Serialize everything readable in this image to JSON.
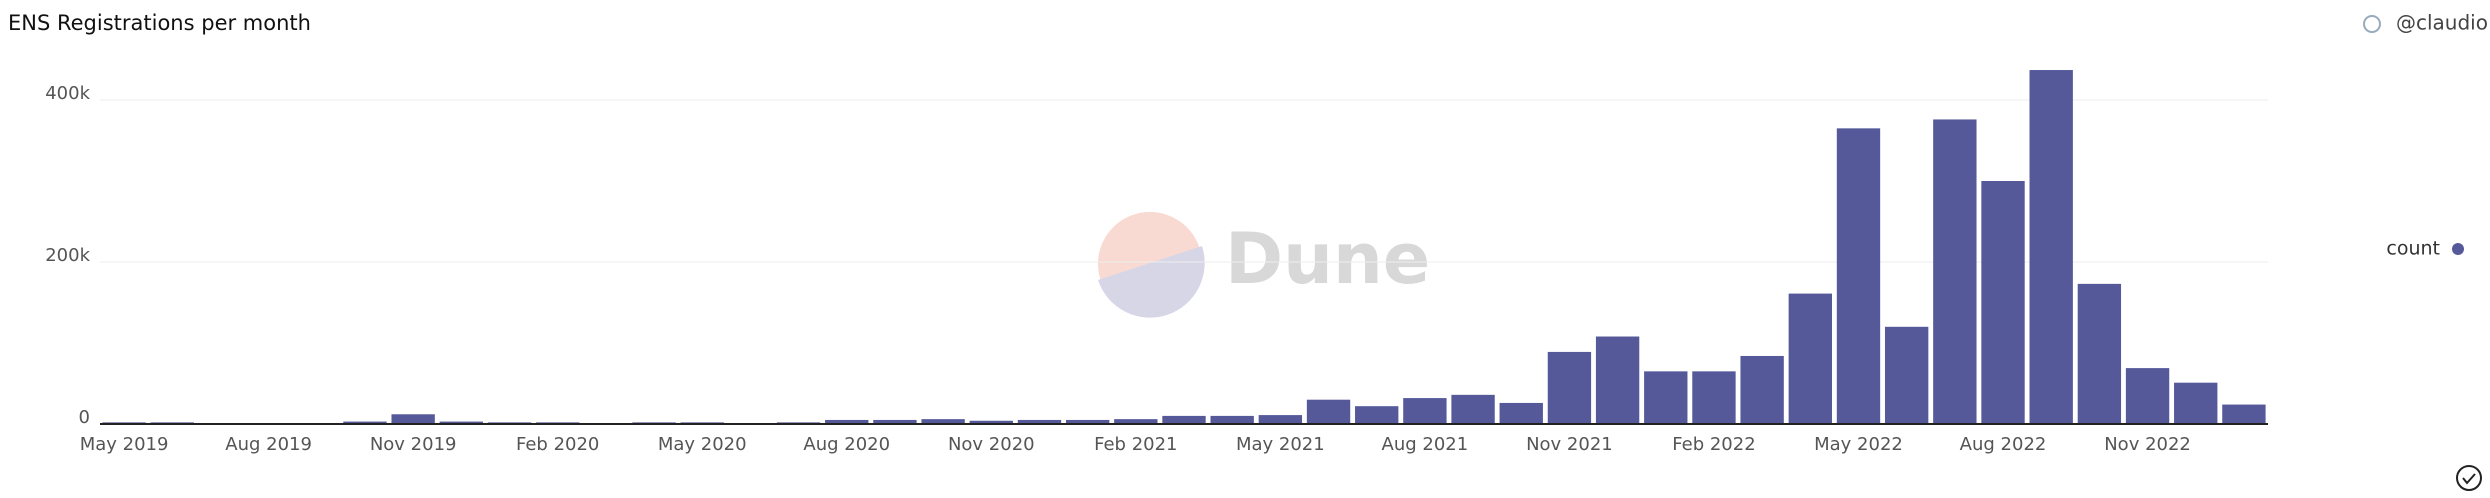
{
  "chart_data": {
    "type": "bar",
    "title": "ENS Registrations per month",
    "author": "@claudio",
    "watermark": "Dune",
    "categories": [
      "May 2019",
      null,
      null,
      "Aug 2019",
      null,
      null,
      "Nov 2019",
      null,
      null,
      "Feb 2020",
      null,
      null,
      "May 2020",
      null,
      null,
      "Aug 2020",
      null,
      null,
      "Nov 2020",
      null,
      null,
      "Feb 2021",
      null,
      null,
      "May 2021",
      null,
      null,
      "Aug 2021",
      null,
      null,
      "Nov 2021",
      null,
      null,
      "Feb 2022",
      null,
      null,
      "May 2022",
      null,
      null,
      "Aug 2022",
      null,
      null,
      "Nov 2022",
      null,
      null
    ],
    "series": [
      {
        "name": "count",
        "color": "#55599a",
        "values": [
          2000,
          2000,
          1000,
          1000,
          1000,
          3000,
          12000,
          3000,
          2000,
          2000,
          1000,
          2000,
          2000,
          1000,
          2000,
          5000,
          5000,
          6000,
          4000,
          5000,
          5000,
          6000,
          10000,
          10000,
          11000,
          30000,
          22000,
          32000,
          36000,
          26000,
          89000,
          108000,
          65000,
          65000,
          84000,
          161000,
          365000,
          120000,
          376000,
          300000,
          437000,
          173000,
          69000,
          51000,
          24000
        ]
      }
    ],
    "ylim": [
      0,
      450000
    ],
    "yticks": [
      {
        "value": 0,
        "label": "0"
      },
      {
        "value": 200000,
        "label": "200k"
      },
      {
        "value": 400000,
        "label": "400k"
      }
    ],
    "grid": true,
    "legend": "right"
  }
}
